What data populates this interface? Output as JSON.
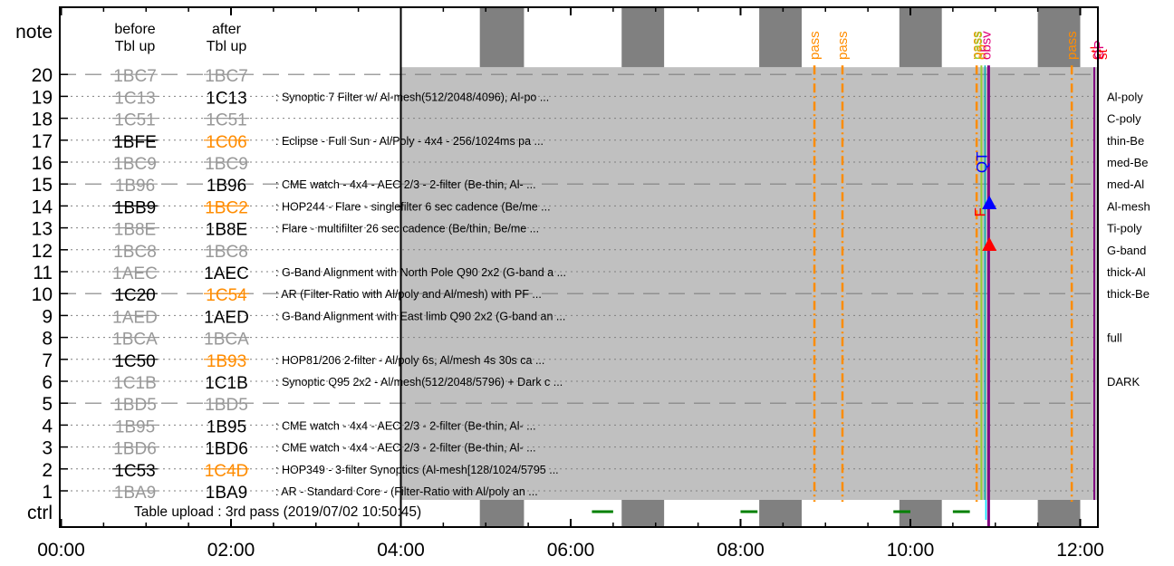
{
  "chart_data": {
    "type": "timeline",
    "table_upload_label": "Table upload : 3rd pass (2019/07/02 10:50:45)",
    "column_headers": {
      "before": [
        "before",
        "Tbl up"
      ],
      "after": [
        "after",
        "Tbl up"
      ]
    },
    "row_labels": {
      "note": "note",
      "ctrl": "ctrl"
    },
    "x_axis": {
      "range_hours": [
        0,
        12.3
      ],
      "ticks": [
        "00:00",
        "02:00",
        "04:00",
        "06:00",
        "08:00",
        "10:00",
        "12:00"
      ]
    },
    "rows": [
      {
        "slot": 20,
        "before": "1BC7",
        "before_state": "struck",
        "after": "1BC7",
        "after_state": "struck",
        "desc": "",
        "filter": ""
      },
      {
        "slot": 19,
        "before": "1C13",
        "before_state": "struck",
        "after": "1C13",
        "after_state": "normal",
        "desc": "Synoptic 7 Filter w/ Al-mesh(512/2048/4096), Al-po ...",
        "filter": "Al-poly"
      },
      {
        "slot": 18,
        "before": "1C51",
        "before_state": "struck",
        "after": "1C51",
        "after_state": "struck",
        "desc": "",
        "filter": "C-poly"
      },
      {
        "slot": 17,
        "before": "1BFE",
        "before_state": "normal",
        "after": "1C06",
        "after_state": "changed",
        "desc": "Eclipse - Full Sun - Al/Poly - 4x4 - 256/1024ms pa ...",
        "filter": "thin-Be"
      },
      {
        "slot": 16,
        "before": "1BC9",
        "before_state": "struck",
        "after": "1BC9",
        "after_state": "struck",
        "desc": "",
        "filter": "med-Be"
      },
      {
        "slot": 15,
        "before": "1B96",
        "before_state": "struck",
        "after": "1B96",
        "after_state": "normal",
        "desc": "CME watch - 4x4 - AEC 2/3 - 2-filter (Be-thin, Al- ...",
        "filter": "med-Al"
      },
      {
        "slot": 14,
        "before": "1BB9",
        "before_state": "normal",
        "after": "1BC2",
        "after_state": "changed",
        "desc": "HOP244 - Flare - singlefilter 6 sec cadence (Be/me ...",
        "filter": "Al-mesh"
      },
      {
        "slot": 13,
        "before": "1B8E",
        "before_state": "struck",
        "after": "1B8E",
        "after_state": "normal",
        "desc": "Flare - multifilter 26 sec cadence (Be/thin, Be/me ...",
        "filter": "Ti-poly"
      },
      {
        "slot": 12,
        "before": "1BC8",
        "before_state": "struck",
        "after": "1BC8",
        "after_state": "struck",
        "desc": "",
        "filter": "G-band"
      },
      {
        "slot": 11,
        "before": "1AEC",
        "before_state": "struck",
        "after": "1AEC",
        "after_state": "normal",
        "desc": "G-Band Alignment with North Pole Q90 2x2 (G-band a ...",
        "filter": "thick-Al"
      },
      {
        "slot": 10,
        "before": "1C20",
        "before_state": "normal",
        "after": "1C54",
        "after_state": "changed",
        "desc": "AR (Filter-Ratio with Al/poly and Al/mesh) with PF ...",
        "filter": "thick-Be"
      },
      {
        "slot": 9,
        "before": "1AED",
        "before_state": "struck",
        "after": "1AED",
        "after_state": "normal",
        "desc": "G-Band Alignment with East limb Q90 2x2 (G-band an ...",
        "filter": ""
      },
      {
        "slot": 8,
        "before": "1BCA",
        "before_state": "struck",
        "after": "1BCA",
        "after_state": "struck",
        "desc": "",
        "filter": "full"
      },
      {
        "slot": 7,
        "before": "1C50",
        "before_state": "normal",
        "after": "1B93",
        "after_state": "changed",
        "desc": "HOP81/206 2-filter - Al/poly 6s, Al/mesh 4s 30s ca ...",
        "filter": ""
      },
      {
        "slot": 6,
        "before": "1C1B",
        "before_state": "struck",
        "after": "1C1B",
        "after_state": "normal",
        "desc": "Synoptic Q95 2x2 - Al/mesh(512/2048/5796) + Dark c ...",
        "filter": "DARK"
      },
      {
        "slot": 5,
        "before": "1BD5",
        "before_state": "struck",
        "after": "1BD5",
        "after_state": "struck",
        "desc": "",
        "filter": ""
      },
      {
        "slot": 4,
        "before": "1B95",
        "before_state": "struck",
        "after": "1B95",
        "after_state": "normal",
        "desc": "CME watch - 4x4 - AEC 2/3 - 2-filter (Be-thin, Al- ...",
        "filter": ""
      },
      {
        "slot": 3,
        "before": "1BD6",
        "before_state": "struck",
        "after": "1BD6",
        "after_state": "normal",
        "desc": "CME watch - 4x4 - AEC 2/3 - 2-filter (Be-thin, Al- ...",
        "filter": ""
      },
      {
        "slot": 2,
        "before": "1C53",
        "before_state": "normal",
        "after": "1C4D",
        "after_state": "changed",
        "desc": "HOP349 - 3-filter Synoptics (Al-mesh[128/1024/5795 ...",
        "filter": ""
      },
      {
        "slot": 1,
        "before": "1BA9",
        "before_state": "struck",
        "after": "1BA9",
        "after_state": "normal",
        "desc": "AR - Standard Core - (Filter-Ratio with Al/poly an ...",
        "filter": ""
      }
    ],
    "dark_bands_hours": [
      [
        4.93,
        5.45
      ],
      [
        6.6,
        7.1
      ],
      [
        8.22,
        8.72
      ],
      [
        9.87,
        10.37
      ],
      [
        11.5,
        12.0
      ]
    ],
    "pass_events": [
      {
        "t": 8.87,
        "label": "pass",
        "color": "#ff8c00"
      },
      {
        "t": 9.2,
        "label": "pass",
        "color": "#ff8c00"
      },
      {
        "t": 10.78,
        "label": "pass",
        "color": "#ff8c00"
      },
      {
        "t": 11.9,
        "label": "pass",
        "color": "#ff8c00"
      }
    ],
    "event_labels": [
      {
        "t": 10.8,
        "label": "pass",
        "color": "#9acd32"
      },
      {
        "t": 10.85,
        "label": "dp",
        "color": "#ff8c00"
      },
      {
        "t": 10.9,
        "label": "obsv",
        "color": "#e0007a"
      },
      {
        "t": 12.19,
        "label": "ctl",
        "color": "#ff0000"
      },
      {
        "t": 12.23,
        "label": "OP",
        "color": "#e0007a"
      },
      {
        "t": 12.27,
        "label": "st",
        "color": "#ff0000"
      }
    ],
    "markers": [
      {
        "t": 10.9,
        "slot": 15.5,
        "label": "QT",
        "color": "#0000ff",
        "type": "label"
      },
      {
        "t": 10.93,
        "slot": 14.1,
        "label": "",
        "color": "#0000ff",
        "type": "triangle"
      },
      {
        "t": 10.88,
        "slot": 13.5,
        "label": "F",
        "color": "#ff0000",
        "type": "label"
      },
      {
        "t": 10.93,
        "slot": 12.2,
        "label": "",
        "color": "#ff0000",
        "type": "triangle"
      }
    ],
    "program_start_hours": 4.0,
    "program_end_hours": 12.2,
    "ctrl_dashes_hours": [
      [
        6.25,
        6.5
      ],
      [
        8.0,
        8.2
      ],
      [
        9.8,
        10.0
      ],
      [
        10.5,
        10.7
      ]
    ],
    "colors": {
      "struck": "#999999",
      "changed": "#ff8c00",
      "normal": "#000000",
      "program": "#c0c0c0",
      "dark_band": "#808080",
      "grid": "#808080"
    }
  }
}
